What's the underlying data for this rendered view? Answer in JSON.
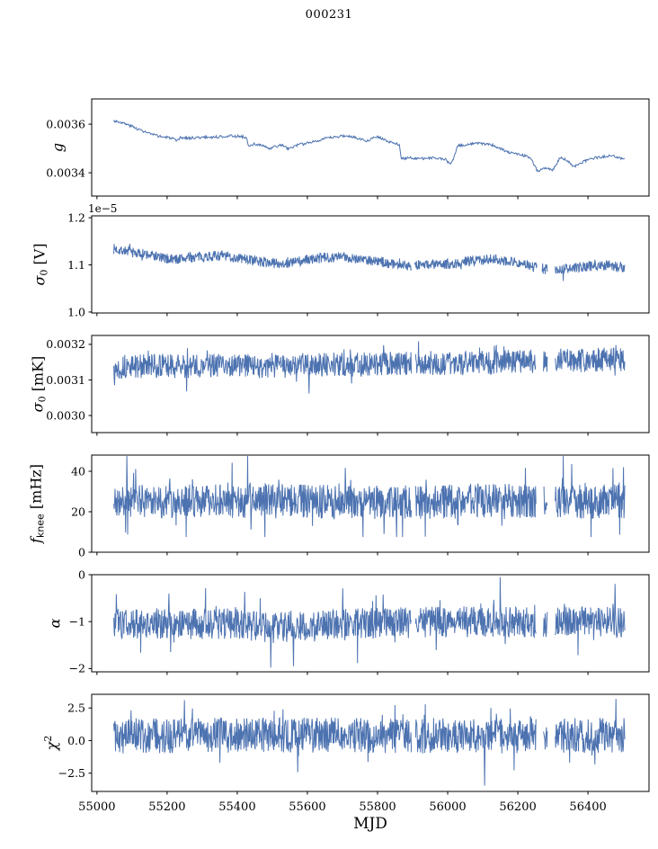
{
  "chart_data": {
    "type": "line",
    "title": "000231",
    "xlabel": "MJD",
    "line_color": "#4C72B0",
    "background": "#ffffff",
    "xlim": [
      54985,
      56574
    ],
    "x_data_range": [
      55048,
      56505
    ],
    "xticks": [
      {
        "v": 55000,
        "label": "55000"
      },
      {
        "v": 55200,
        "label": "55200"
      },
      {
        "v": 55400,
        "label": "55400"
      },
      {
        "v": 55600,
        "label": "55600"
      },
      {
        "v": 55800,
        "label": "55800"
      },
      {
        "v": 56000,
        "label": "56000"
      },
      {
        "v": 56200,
        "label": "56200"
      },
      {
        "v": 56400,
        "label": "56400"
      }
    ],
    "panels": [
      {
        "id": "g",
        "ylabel_parts": [
          {
            "t": "g",
            "i": true
          }
        ],
        "ylim": [
          0.003304,
          0.003704
        ],
        "yticks": [
          {
            "v": 0.0034,
            "label": "0.0034"
          },
          {
            "v": 0.0036,
            "label": "0.0036"
          }
        ],
        "offset_text": "",
        "step": 2.0,
        "noise": 5.5e-06,
        "spike_prob": 0.0,
        "spike_amp": 0,
        "clip": null,
        "gaps": [],
        "extra_spikes": [],
        "seed": 3,
        "trend": [
          [
            55048,
            0.003615
          ],
          [
            55070,
            0.003607
          ],
          [
            55100,
            0.003591
          ],
          [
            55130,
            0.003572
          ],
          [
            55160,
            0.003556
          ],
          [
            55190,
            0.003547
          ],
          [
            55215,
            0.003543
          ],
          [
            55227,
            0.003528
          ],
          [
            55238,
            0.003544
          ],
          [
            55265,
            0.003543
          ],
          [
            55300,
            0.003546
          ],
          [
            55340,
            0.003547
          ],
          [
            55375,
            0.003552
          ],
          [
            55405,
            0.00355
          ],
          [
            55425,
            0.003547
          ],
          [
            55433,
            0.003505
          ],
          [
            55448,
            0.003518
          ],
          [
            55470,
            0.003513
          ],
          [
            55492,
            0.003498
          ],
          [
            55510,
            0.003509
          ],
          [
            55528,
            0.003514
          ],
          [
            55547,
            0.003497
          ],
          [
            55565,
            0.003512
          ],
          [
            55590,
            0.003519
          ],
          [
            55620,
            0.00353
          ],
          [
            55650,
            0.00354
          ],
          [
            55680,
            0.003548
          ],
          [
            55705,
            0.003552
          ],
          [
            55728,
            0.003548
          ],
          [
            55752,
            0.00354
          ],
          [
            55772,
            0.003531
          ],
          [
            55792,
            0.003551
          ],
          [
            55808,
            0.003545
          ],
          [
            55828,
            0.003528
          ],
          [
            55848,
            0.003521
          ],
          [
            55862,
            0.003517
          ],
          [
            55867,
            0.003459
          ],
          [
            55895,
            0.003461
          ],
          [
            55930,
            0.003459
          ],
          [
            55965,
            0.003461
          ],
          [
            55995,
            0.003455
          ],
          [
            56006,
            0.003434
          ],
          [
            56014,
            0.003448
          ],
          [
            56028,
            0.00351
          ],
          [
            56055,
            0.003517
          ],
          [
            56090,
            0.003521
          ],
          [
            56120,
            0.003518
          ],
          [
            56148,
            0.003501
          ],
          [
            56172,
            0.003483
          ],
          [
            56205,
            0.003477
          ],
          [
            56235,
            0.003462
          ],
          [
            56256,
            0.003408
          ],
          [
            56278,
            0.003419
          ],
          [
            56300,
            0.003413
          ],
          [
            56322,
            0.003464
          ],
          [
            56342,
            0.003449
          ],
          [
            56358,
            0.003425
          ],
          [
            56382,
            0.003441
          ],
          [
            56408,
            0.003459
          ],
          [
            56435,
            0.003464
          ],
          [
            56465,
            0.00347
          ],
          [
            56488,
            0.003463
          ],
          [
            56505,
            0.003456
          ]
        ]
      },
      {
        "id": "sigma0-v",
        "ylabel_parts": [
          {
            "t": "σ",
            "i": true
          },
          {
            "t": "0",
            "sub": true
          },
          {
            "t": " [V]"
          }
        ],
        "ylim": [
          0.998,
          1.204
        ],
        "yticks": [
          {
            "v": 1.0,
            "label": "1.0"
          },
          {
            "v": 1.1,
            "label": "1.1"
          },
          {
            "v": 1.2,
            "label": "1.2"
          }
        ],
        "offset_text": "1e−5",
        "step": 1.2,
        "noise": 0.011,
        "spike_prob": 0.008,
        "spike_amp": 0.016,
        "clip": [
          1.04,
          1.17
        ],
        "gaps": [
          [
            55897,
            55905
          ],
          [
            56255,
            56268
          ],
          [
            56284,
            56306
          ]
        ],
        "extra_spikes": [
          [
            56330,
            1.066
          ]
        ],
        "seed": 7,
        "trend": [
          [
            55048,
            1.134
          ],
          [
            55080,
            1.13
          ],
          [
            55120,
            1.124
          ],
          [
            55160,
            1.12
          ],
          [
            55195,
            1.113
          ],
          [
            55230,
            1.112
          ],
          [
            55270,
            1.116
          ],
          [
            55310,
            1.118
          ],
          [
            55355,
            1.12
          ],
          [
            55385,
            1.116
          ],
          [
            55420,
            1.113
          ],
          [
            55460,
            1.108
          ],
          [
            55500,
            1.104
          ],
          [
            55540,
            1.103
          ],
          [
            55580,
            1.108
          ],
          [
            55620,
            1.113
          ],
          [
            55660,
            1.116
          ],
          [
            55700,
            1.117
          ],
          [
            55740,
            1.114
          ],
          [
            55780,
            1.11
          ],
          [
            55820,
            1.105
          ],
          [
            55860,
            1.101
          ],
          [
            55900,
            1.099
          ],
          [
            55940,
            1.101
          ],
          [
            55980,
            1.101
          ],
          [
            56020,
            1.103
          ],
          [
            56060,
            1.108
          ],
          [
            56100,
            1.111
          ],
          [
            56140,
            1.112
          ],
          [
            56180,
            1.108
          ],
          [
            56220,
            1.101
          ],
          [
            56250,
            1.095
          ],
          [
            56280,
            1.091
          ],
          [
            56310,
            1.09
          ],
          [
            56340,
            1.092
          ],
          [
            56380,
            1.095
          ],
          [
            56420,
            1.099
          ],
          [
            56460,
            1.1
          ],
          [
            56490,
            1.096
          ],
          [
            56505,
            1.095
          ]
        ]
      },
      {
        "id": "sigma0-mk",
        "ylabel_parts": [
          {
            "t": "σ",
            "i": true
          },
          {
            "t": "0",
            "sub": true
          },
          {
            "t": " [mK]"
          }
        ],
        "ylim": [
          0.002952,
          0.003225
        ],
        "yticks": [
          {
            "v": 0.003,
            "label": "0.0030"
          },
          {
            "v": 0.0031,
            "label": "0.0031"
          },
          {
            "v": 0.0032,
            "label": "0.0032"
          }
        ],
        "offset_text": "",
        "step": 1.2,
        "noise": 3.4e-05,
        "spike_prob": 0.04,
        "spike_amp": 3e-05,
        "clip": [
          0.003045,
          0.003215
        ],
        "gaps": [
          [
            55897,
            55908
          ],
          [
            56252,
            56272
          ],
          [
            56284,
            56306
          ]
        ],
        "extra_spikes": [
          [
            55255,
            0.003068
          ],
          [
            55605,
            0.003062
          ],
          [
            56480,
            0.003198
          ]
        ],
        "seed": 13,
        "trend": [
          [
            55048,
            0.003135
          ],
          [
            55150,
            0.00314
          ],
          [
            55250,
            0.003138
          ],
          [
            55350,
            0.003142
          ],
          [
            55450,
            0.003138
          ],
          [
            55550,
            0.00314
          ],
          [
            55650,
            0.003144
          ],
          [
            55750,
            0.003143
          ],
          [
            55850,
            0.003146
          ],
          [
            55950,
            0.003148
          ],
          [
            56050,
            0.003146
          ],
          [
            56150,
            0.00315
          ],
          [
            56250,
            0.003152
          ],
          [
            56350,
            0.003155
          ],
          [
            56450,
            0.003158
          ],
          [
            56505,
            0.003158
          ]
        ]
      },
      {
        "id": "fknee",
        "ylabel_parts": [
          {
            "t": "f",
            "i": true
          },
          {
            "t": "knee",
            "sub": true,
            "sans": true
          },
          {
            "t": " [mHz]"
          }
        ],
        "ylim": [
          0,
          48
        ],
        "yticks": [
          {
            "v": 0,
            "label": "0"
          },
          {
            "v": 20,
            "label": "20"
          },
          {
            "v": 40,
            "label": "40"
          }
        ],
        "offset_text": "",
        "step": 1.2,
        "noise": 8.5,
        "spike_prob": 0.05,
        "spike_amp": 14,
        "clip": [
          7.5,
          47.6
        ],
        "gaps": [
          [
            55897,
            55908
          ],
          [
            56252,
            56272
          ],
          [
            56284,
            56306
          ]
        ],
        "extra_spikes": [
          [
            55085,
            47.5
          ],
          [
            55430,
            47.5
          ],
          [
            56330,
            47.5
          ]
        ],
        "seed": 21,
        "trend": [
          [
            55048,
            25
          ],
          [
            55300,
            25.5
          ],
          [
            55600,
            25
          ],
          [
            55900,
            24.5
          ],
          [
            56100,
            25.5
          ],
          [
            56300,
            25
          ],
          [
            56505,
            25
          ]
        ]
      },
      {
        "id": "alpha",
        "ylabel_parts": [
          {
            "t": "α",
            "i": true
          }
        ],
        "ylim": [
          -2.07,
          0.0
        ],
        "yticks": [
          {
            "v": 0,
            "label": "0"
          },
          {
            "v": -1,
            "label": "−1"
          },
          {
            "v": -2,
            "label": "−2"
          }
        ],
        "offset_text": "",
        "step": 1.2,
        "noise": 0.33,
        "spike_prob": 0.05,
        "spike_amp": 0.55,
        "clip": [
          -2.03,
          -0.03
        ],
        "gaps": [
          [
            55897,
            55908
          ],
          [
            56252,
            56272
          ],
          [
            56284,
            56306
          ]
        ],
        "extra_spikes": [
          [
            55495,
            -1.98
          ],
          [
            55560,
            -1.95
          ],
          [
            56150,
            -0.05
          ]
        ],
        "seed": 31,
        "trend": [
          [
            55048,
            -1.03
          ],
          [
            55400,
            -1.05
          ],
          [
            55480,
            -1.14
          ],
          [
            55600,
            -1.11
          ],
          [
            55700,
            -1.05
          ],
          [
            55900,
            -1.02
          ],
          [
            56100,
            -1.0
          ],
          [
            56300,
            -1.02
          ],
          [
            56505,
            -1.0
          ]
        ]
      },
      {
        "id": "chi2",
        "ylabel_parts": [
          {
            "t": "χ",
            "i": true
          },
          {
            "t": "2",
            "sup": true
          }
        ],
        "ylim": [
          -3.9,
          3.55
        ],
        "yticks": [
          {
            "v": 2.5,
            "label": "2.5"
          },
          {
            "v": 0.0,
            "label": "0.0"
          },
          {
            "v": -2.5,
            "label": "−2.5"
          }
        ],
        "offset_text": "",
        "step": 1.2,
        "noise": 1.35,
        "spike_prob": 0.05,
        "spike_amp": 1.6,
        "clip": [
          -3.5,
          3.25
        ],
        "gaps": [
          [
            55897,
            55908
          ],
          [
            56252,
            56272
          ],
          [
            56284,
            56306
          ]
        ],
        "extra_spikes": [
          [
            56105,
            -3.45
          ],
          [
            56480,
            3.2
          ],
          [
            55250,
            3.1
          ]
        ],
        "seed": 41,
        "trend": [
          [
            55048,
            0.38
          ],
          [
            55600,
            0.42
          ],
          [
            56000,
            0.35
          ],
          [
            56505,
            0.4
          ]
        ]
      }
    ]
  }
}
